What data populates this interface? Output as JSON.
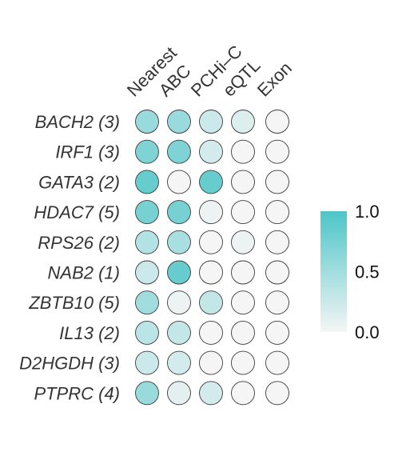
{
  "chart_data": {
    "type": "heatmap",
    "columns": [
      "Nearest",
      "ABC",
      "PCHi–C",
      "eQTL",
      "Exon"
    ],
    "rows": [
      "BACH2 (3)",
      "IRF1 (3)",
      "GATA3 (2)",
      "HDAC7 (5)",
      "RPS26 (2)",
      "NAB2 (1)",
      "ZBTB10 (5)",
      "IL13 (2)",
      "D2HGDH (3)",
      "PTPRC (4)"
    ],
    "values": [
      [
        0.55,
        0.55,
        0.25,
        0.15,
        0.0
      ],
      [
        0.7,
        0.7,
        0.2,
        0.0,
        0.0
      ],
      [
        0.85,
        0.0,
        0.85,
        0.0,
        0.0
      ],
      [
        0.75,
        0.75,
        0.05,
        0.0,
        0.0
      ],
      [
        0.4,
        0.45,
        0.0,
        0.05,
        0.0
      ],
      [
        0.25,
        0.85,
        0.0,
        0.0,
        0.0
      ],
      [
        0.5,
        0.05,
        0.3,
        0.0,
        0.0
      ],
      [
        0.35,
        0.3,
        0.0,
        0.0,
        0.0
      ],
      [
        0.25,
        0.2,
        0.0,
        0.0,
        0.0
      ],
      [
        0.55,
        0.1,
        0.2,
        0.0,
        0.0
      ]
    ],
    "colorscale": {
      "min": 0.0,
      "max": 1.0,
      "low_color": "#f5f5f5",
      "high_color": "#4dc5c7",
      "ticks": [
        "1.0",
        "0.5",
        "0.0"
      ]
    },
    "colorbar_position": "right"
  }
}
